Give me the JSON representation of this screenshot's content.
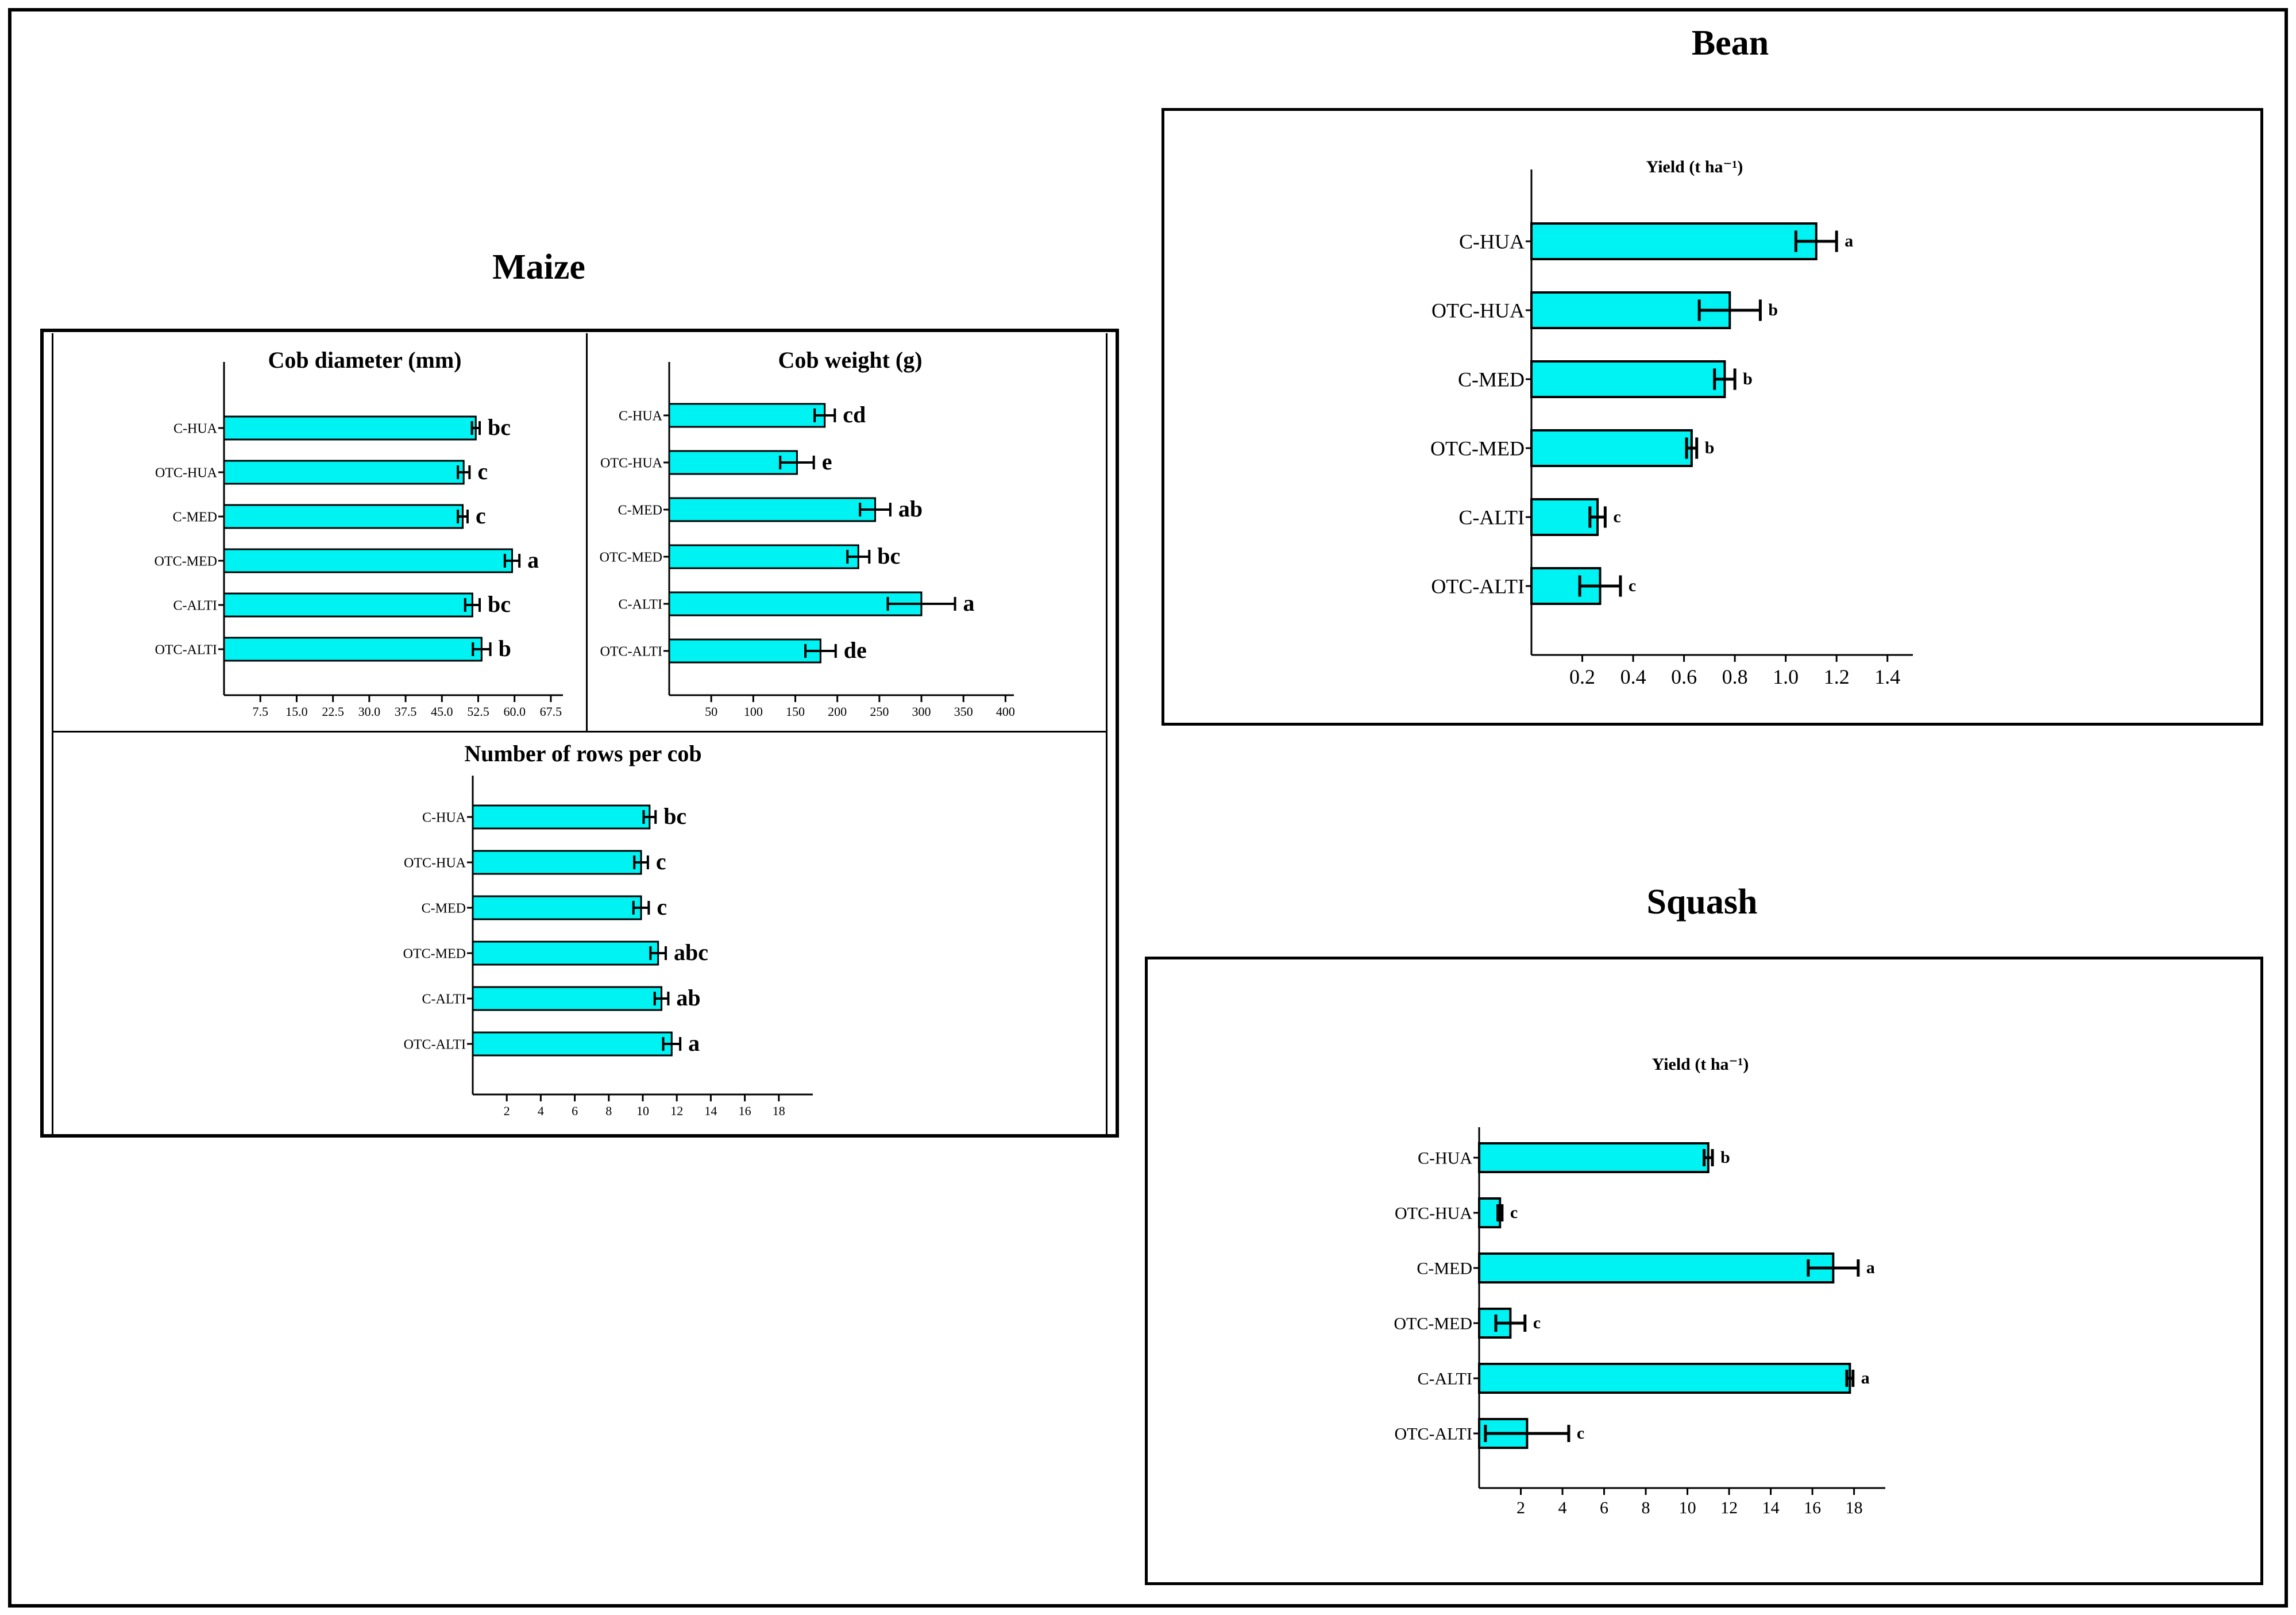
{
  "colors": {
    "bar_fill": "#00f3f3",
    "stroke": "#000000",
    "background": "#ffffff"
  },
  "sections": {
    "maize": {
      "title": "Maize"
    },
    "bean": {
      "title": "Bean"
    },
    "squash": {
      "title": "Squash"
    }
  },
  "chart_data": [
    {
      "type": "bar",
      "orientation": "horizontal",
      "panel": "Maize",
      "title": "Cob diameter (mm)",
      "categories": [
        "C-HUA",
        "OTC-HUA",
        "C-MED",
        "OTC-MED",
        "C-ALTI",
        "OTC-ALTI"
      ],
      "values": [
        52.0,
        49.5,
        49.3,
        59.5,
        51.3,
        53.2
      ],
      "errors": [
        0.8,
        1.2,
        1.0,
        1.5,
        1.5,
        1.8
      ],
      "letters": [
        "bc",
        "c",
        "c",
        "a",
        "bc",
        "b"
      ],
      "xlim": [
        0,
        70
      ],
      "xticks": [
        "7.5",
        "15.0",
        "22.5",
        "30.0",
        "37.5",
        "45.0",
        "52.5",
        "60.0",
        "67.5"
      ],
      "xtick_values": [
        7.5,
        15.0,
        22.5,
        30.0,
        37.5,
        45.0,
        52.5,
        60.0,
        67.5
      ],
      "xlabel": "",
      "ylabel": "",
      "grid": false
    },
    {
      "type": "bar",
      "orientation": "horizontal",
      "panel": "Maize",
      "title": "Cob weight (g)",
      "categories": [
        "C-HUA",
        "OTC-HUA",
        "C-MED",
        "OTC-MED",
        "C-ALTI",
        "OTC-ALTI"
      ],
      "values": [
        185,
        152,
        245,
        225,
        300,
        180
      ],
      "errors": [
        12,
        20,
        18,
        13,
        40,
        18
      ],
      "letters": [
        "cd",
        "e",
        "ab",
        "bc",
        "a",
        "de"
      ],
      "xlim": [
        0,
        410
      ],
      "xticks": [
        "50",
        "100",
        "150",
        "200",
        "250",
        "300",
        "350",
        "400"
      ],
      "xtick_values": [
        50,
        100,
        150,
        200,
        250,
        300,
        350,
        400
      ],
      "xlabel": "",
      "ylabel": "",
      "grid": false
    },
    {
      "type": "bar",
      "orientation": "horizontal",
      "panel": "Maize",
      "title": "Number of rows per cob",
      "categories": [
        "C-HUA",
        "OTC-HUA",
        "C-MED",
        "OTC-MED",
        "C-ALTI",
        "OTC-ALTI"
      ],
      "values": [
        10.4,
        9.9,
        9.9,
        10.9,
        11.1,
        11.7
      ],
      "errors": [
        0.35,
        0.4,
        0.45,
        0.45,
        0.4,
        0.5
      ],
      "letters": [
        "bc",
        "c",
        "c",
        "abc",
        "ab",
        "a"
      ],
      "xlim": [
        0,
        20
      ],
      "xticks": [
        "2",
        "4",
        "6",
        "8",
        "10",
        "12",
        "14",
        "16",
        "18"
      ],
      "xtick_values": [
        2,
        4,
        6,
        8,
        10,
        12,
        14,
        16,
        18
      ],
      "xlabel": "",
      "ylabel": "",
      "grid": false
    },
    {
      "type": "bar",
      "orientation": "horizontal",
      "panel": "Bean",
      "title": "Yield (t ha⁻¹)",
      "categories": [
        "C-HUA",
        "OTC-HUA",
        "C-MED",
        "OTC-MED",
        "C-ALTI",
        "OTC-ALTI"
      ],
      "values": [
        1.12,
        0.78,
        0.76,
        0.63,
        0.26,
        0.27
      ],
      "errors": [
        0.08,
        0.12,
        0.04,
        0.02,
        0.03,
        0.08
      ],
      "letters": [
        "a",
        "b",
        "b",
        "b",
        "c",
        "c"
      ],
      "xlim": [
        0,
        1.5
      ],
      "xticks": [
        "0.2",
        "0.4",
        "0.6",
        "0.8",
        "1.0",
        "1.2",
        "1.4"
      ],
      "xtick_values": [
        0.2,
        0.4,
        0.6,
        0.8,
        1.0,
        1.2,
        1.4
      ],
      "xlabel": "",
      "ylabel": "",
      "grid": false
    },
    {
      "type": "bar",
      "orientation": "horizontal",
      "panel": "Squash",
      "title": "Yield (t ha⁻¹)",
      "categories": [
        "C-HUA",
        "OTC-HUA",
        "C-MED",
        "OTC-MED",
        "C-ALTI",
        "OTC-ALTI"
      ],
      "values": [
        11.0,
        1.0,
        17.0,
        1.5,
        17.8,
        2.3
      ],
      "errors": [
        0.2,
        0.1,
        1.2,
        0.7,
        0.15,
        2.0
      ],
      "letters": [
        "b",
        "c",
        "a",
        "c",
        "a",
        "c"
      ],
      "xlim": [
        0,
        19.5
      ],
      "xticks": [
        "2",
        "4",
        "6",
        "8",
        "10",
        "12",
        "14",
        "16",
        "18"
      ],
      "xtick_values": [
        2,
        4,
        6,
        8,
        10,
        12,
        14,
        16,
        18
      ],
      "xlabel": "",
      "ylabel": "",
      "grid": false
    }
  ]
}
